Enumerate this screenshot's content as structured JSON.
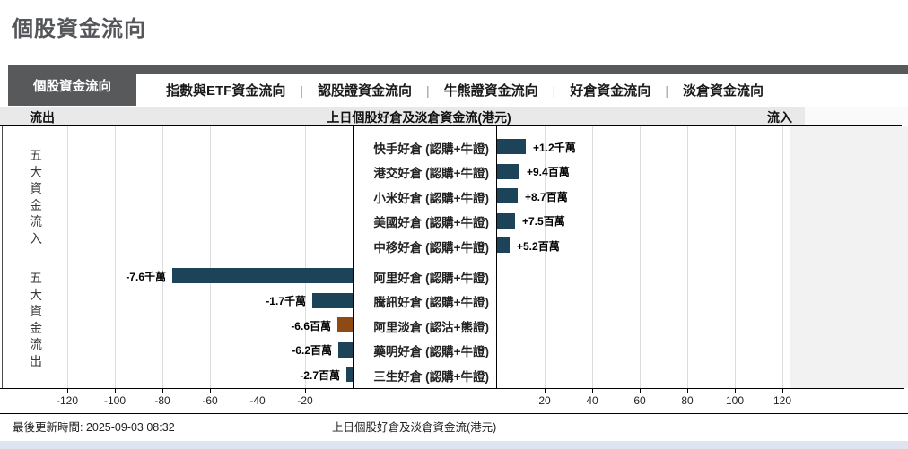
{
  "page": {
    "title": "個股資金流向"
  },
  "tabs": {
    "active_index": 0,
    "items": [
      {
        "label": "個股資金流向"
      },
      {
        "label": "指數與ETF資金流向"
      },
      {
        "label": "認股證資金流向"
      },
      {
        "label": "牛熊證資金流向"
      },
      {
        "label": "好倉資金流向"
      },
      {
        "label": "淡倉資金流向"
      }
    ],
    "separator": "|"
  },
  "chart_header": {
    "left": "流出",
    "center": "上日個股好倉及淡倉資金流(港元)",
    "right": "流入"
  },
  "chart_data": {
    "type": "bar",
    "orientation": "horizontal",
    "title": "上日個股好倉及淡倉資金流(港元)",
    "value_unit": "百萬港元",
    "xlim": [
      -140,
      140
    ],
    "x_ticks_negative": [
      -120,
      -100,
      -80,
      -60,
      -40,
      -20
    ],
    "x_ticks_positive": [
      20,
      40,
      60,
      80,
      100,
      120
    ],
    "grid": true,
    "groups": [
      {
        "name": "五大資金流入",
        "rows": [
          {
            "label": "快手好倉 (認購+牛證)",
            "value_label": "+1.2千萬",
            "value_millions": 12,
            "color": "#1d4358"
          },
          {
            "label": "港交好倉 (認購+牛證)",
            "value_label": "+9.4百萬",
            "value_millions": 9.4,
            "color": "#1d4358"
          },
          {
            "label": "小米好倉 (認購+牛證)",
            "value_label": "+8.7百萬",
            "value_millions": 8.7,
            "color": "#1d4358"
          },
          {
            "label": "美國好倉 (認購+牛證)",
            "value_label": "+7.5百萬",
            "value_millions": 7.5,
            "color": "#1d4358"
          },
          {
            "label": "中移好倉 (認購+牛證)",
            "value_label": "+5.2百萬",
            "value_millions": 5.2,
            "color": "#1d4358"
          }
        ]
      },
      {
        "name": "五大資金流出",
        "rows": [
          {
            "label": "阿里好倉 (認購+牛證)",
            "value_label": "-7.6千萬",
            "value_millions": -76,
            "color": "#1d4358"
          },
          {
            "label": "騰訊好倉 (認購+牛證)",
            "value_label": "-1.7千萬",
            "value_millions": -17,
            "color": "#1d4358"
          },
          {
            "label": "阿里淡倉 (認沽+熊證)",
            "value_label": "-6.6百萬",
            "value_millions": -6.6,
            "color": "#8d4a13"
          },
          {
            "label": "藥明好倉 (認購+牛證)",
            "value_label": "-6.2百萬",
            "value_millions": -6.2,
            "color": "#1d4358"
          },
          {
            "label": "三生好倉 (認購+牛證)",
            "value_label": "-2.7百萬",
            "value_millions": -2.7,
            "color": "#1d4358"
          }
        ]
      }
    ]
  },
  "footer": {
    "updated": "最後更新時間: 2025-09-03 08:32",
    "caption": "上日個股好倉及淡倉資金流(港元)"
  },
  "colors": {
    "bar_blue": "#1d4358",
    "bar_brown": "#8d4a13",
    "tab_dark": "#58595b",
    "strip_bg": "#e9e9e9",
    "gridline": "#dcdcdc",
    "plot_filler": "#f2f2f2",
    "bottom_strip": "#dfe5ee"
  }
}
